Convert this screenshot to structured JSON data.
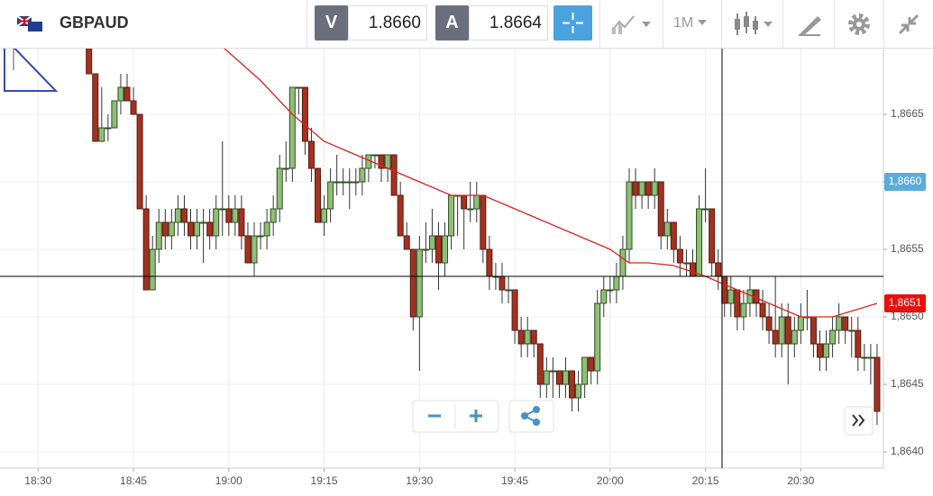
{
  "toolbar": {
    "symbol": "GBPAUD",
    "bid_label": "V",
    "bid": "1.8660",
    "ask_label": "A",
    "ask": "1.8664",
    "timeframe": "1M"
  },
  "chart_data": {
    "type": "candlestick",
    "x": [
      "18:38",
      "18:39",
      "18:40",
      "18:41",
      "18:42",
      "18:43",
      "18:44",
      "18:45",
      "18:46",
      "18:47",
      "18:48",
      "18:49",
      "18:50",
      "18:51",
      "18:52",
      "18:53",
      "18:54",
      "18:55",
      "18:56",
      "18:57",
      "18:58",
      "18:59",
      "19:00",
      "19:01",
      "19:02",
      "19:03",
      "19:04",
      "19:05",
      "19:06",
      "19:07",
      "19:08",
      "19:09",
      "19:10",
      "19:11",
      "19:12",
      "19:13",
      "19:14",
      "19:15",
      "19:16",
      "19:17",
      "19:18",
      "19:19",
      "19:20",
      "19:21",
      "19:22",
      "19:23",
      "19:24",
      "19:25",
      "19:26",
      "19:27",
      "19:28",
      "19:29",
      "19:30",
      "19:31",
      "19:32",
      "19:33",
      "19:34",
      "19:35",
      "19:36",
      "19:37",
      "19:38",
      "19:39",
      "19:40",
      "19:41",
      "19:42",
      "19:43",
      "19:44",
      "19:45",
      "19:46",
      "19:47",
      "19:48",
      "19:49",
      "19:50",
      "19:51",
      "19:52",
      "19:53",
      "19:54",
      "19:55",
      "19:56",
      "19:57",
      "19:58",
      "19:59",
      "20:00",
      "20:01",
      "20:02",
      "20:03",
      "20:04",
      "20:05",
      "20:06",
      "20:07",
      "20:08",
      "20:09",
      "20:10",
      "20:11",
      "20:12",
      "20:13",
      "20:14",
      "20:15",
      "20:16",
      "20:17",
      "20:18",
      "20:19",
      "20:20",
      "20:21",
      "20:22",
      "20:23",
      "20:24",
      "20:25",
      "20:26",
      "20:27",
      "20:28",
      "20:29",
      "20:30",
      "20:31",
      "20:32",
      "20:33",
      "20:34",
      "20:35",
      "20:36",
      "20:37",
      "20:38",
      "20:39",
      "20:40",
      "20:41",
      "20:42"
    ],
    "ohlc": [
      [
        1.867,
        1.8671,
        1.8668,
        1.8668
      ],
      [
        1.8668,
        1.8668,
        1.8663,
        1.8663
      ],
      [
        1.8663,
        1.8667,
        1.8663,
        1.8664
      ],
      [
        1.8664,
        1.8665,
        1.8663,
        1.8664
      ],
      [
        1.8664,
        1.8666,
        1.8664,
        1.8666
      ],
      [
        1.8666,
        1.8668,
        1.8665,
        1.8667
      ],
      [
        1.8667,
        1.8668,
        1.8666,
        1.8666
      ],
      [
        1.8666,
        1.8667,
        1.8665,
        1.8665
      ],
      [
        1.8665,
        1.8665,
        1.8658,
        1.8658
      ],
      [
        1.8658,
        1.8659,
        1.8652,
        1.8652
      ],
      [
        1.8652,
        1.8656,
        1.8652,
        1.8655
      ],
      [
        1.8655,
        1.8658,
        1.8654,
        1.8657
      ],
      [
        1.8657,
        1.8658,
        1.8655,
        1.8656
      ],
      [
        1.8656,
        1.8658,
        1.8655,
        1.8657
      ],
      [
        1.8657,
        1.8659,
        1.8656,
        1.8658
      ],
      [
        1.8658,
        1.8659,
        1.8656,
        1.8657
      ],
      [
        1.8657,
        1.8658,
        1.8655,
        1.8656
      ],
      [
        1.8656,
        1.8658,
        1.8655,
        1.8657
      ],
      [
        1.8657,
        1.8658,
        1.8654,
        1.8657
      ],
      [
        1.8657,
        1.8658,
        1.8655,
        1.8656
      ],
      [
        1.8656,
        1.8659,
        1.8655,
        1.8658
      ],
      [
        1.8658,
        1.8663,
        1.8656,
        1.8658
      ],
      [
        1.8658,
        1.8659,
        1.8656,
        1.8657
      ],
      [
        1.8657,
        1.8659,
        1.8656,
        1.8658
      ],
      [
        1.8658,
        1.8659,
        1.8655,
        1.8656
      ],
      [
        1.8656,
        1.8657,
        1.8654,
        1.8654
      ],
      [
        1.8654,
        1.8657,
        1.8653,
        1.8656
      ],
      [
        1.8656,
        1.8657,
        1.8655,
        1.8656
      ],
      [
        1.8656,
        1.8658,
        1.8655,
        1.8657
      ],
      [
        1.8657,
        1.8659,
        1.8656,
        1.8658
      ],
      [
        1.8658,
        1.8662,
        1.8657,
        1.8661
      ],
      [
        1.8661,
        1.8663,
        1.866,
        1.8661
      ],
      [
        1.8661,
        1.8667,
        1.866,
        1.8667
      ],
      [
        1.8667,
        1.8667,
        1.8665,
        1.8667
      ],
      [
        1.8667,
        1.8667,
        1.8662,
        1.8663
      ],
      [
        1.8663,
        1.8664,
        1.866,
        1.8661
      ],
      [
        1.8661,
        1.8661,
        1.8657,
        1.8657
      ],
      [
        1.8657,
        1.8659,
        1.8656,
        1.8658
      ],
      [
        1.8658,
        1.8661,
        1.8657,
        1.866
      ],
      [
        1.866,
        1.8662,
        1.8659,
        1.866
      ],
      [
        1.866,
        1.8661,
        1.8659,
        1.866
      ],
      [
        1.866,
        1.8661,
        1.8658,
        1.866
      ],
      [
        1.866,
        1.8661,
        1.8659,
        1.866
      ],
      [
        1.866,
        1.8662,
        1.8659,
        1.8661
      ],
      [
        1.8661,
        1.8662,
        1.866,
        1.8662
      ],
      [
        1.8662,
        1.8662,
        1.8661,
        1.8662
      ],
      [
        1.8662,
        1.8662,
        1.866,
        1.8661
      ],
      [
        1.8661,
        1.8662,
        1.866,
        1.8662
      ],
      [
        1.8662,
        1.8662,
        1.8659,
        1.8659
      ],
      [
        1.8659,
        1.866,
        1.8656,
        1.8656
      ],
      [
        1.8656,
        1.8657,
        1.8655,
        1.8655
      ],
      [
        1.8655,
        1.8655,
        1.8649,
        1.865
      ],
      [
        1.865,
        1.8656,
        1.8646,
        1.8655
      ],
      [
        1.8655,
        1.8657,
        1.8654,
        1.8655
      ],
      [
        1.8655,
        1.8658,
        1.8654,
        1.8656
      ],
      [
        1.8656,
        1.8657,
        1.8652,
        1.8654
      ],
      [
        1.8654,
        1.8657,
        1.8653,
        1.8656
      ],
      [
        1.8656,
        1.8659,
        1.8655,
        1.8659
      ],
      [
        1.8659,
        1.8659,
        1.8656,
        1.8659
      ],
      [
        1.8659,
        1.8659,
        1.8655,
        1.8658
      ],
      [
        1.8658,
        1.866,
        1.8657,
        1.8658
      ],
      [
        1.8658,
        1.866,
        1.8657,
        1.8659
      ],
      [
        1.8659,
        1.8659,
        1.8654,
        1.8655
      ],
      [
        1.8655,
        1.8656,
        1.8652,
        1.8653
      ],
      [
        1.8653,
        1.8654,
        1.8652,
        1.8653
      ],
      [
        1.8653,
        1.8654,
        1.8651,
        1.8652
      ],
      [
        1.8652,
        1.8653,
        1.8651,
        1.8652
      ],
      [
        1.8652,
        1.8652,
        1.8648,
        1.8649
      ],
      [
        1.8649,
        1.865,
        1.8647,
        1.8648
      ],
      [
        1.8648,
        1.865,
        1.8647,
        1.8649
      ],
      [
        1.8649,
        1.8649,
        1.8647,
        1.8648
      ],
      [
        1.8648,
        1.8648,
        1.8644,
        1.8645
      ],
      [
        1.8645,
        1.8647,
        1.8644,
        1.8646
      ],
      [
        1.8646,
        1.8647,
        1.8644,
        1.8646
      ],
      [
        1.8646,
        1.8646,
        1.8644,
        1.8645
      ],
      [
        1.8645,
        1.8647,
        1.8644,
        1.8646
      ],
      [
        1.8646,
        1.8646,
        1.8643,
        1.8644
      ],
      [
        1.8644,
        1.8646,
        1.8643,
        1.8645
      ],
      [
        1.8645,
        1.8647,
        1.8644,
        1.8647
      ],
      [
        1.8647,
        1.8647,
        1.8645,
        1.8646
      ],
      [
        1.8646,
        1.8652,
        1.8645,
        1.8651
      ],
      [
        1.8651,
        1.8653,
        1.865,
        1.8652
      ],
      [
        1.8652,
        1.8653,
        1.8651,
        1.8652
      ],
      [
        1.8652,
        1.8654,
        1.8651,
        1.8653
      ],
      [
        1.8653,
        1.8656,
        1.8652,
        1.8655
      ],
      [
        1.8655,
        1.8661,
        1.8654,
        1.866
      ],
      [
        1.866,
        1.8661,
        1.8658,
        1.8659
      ],
      [
        1.8659,
        1.866,
        1.8658,
        1.866
      ],
      [
        1.866,
        1.866,
        1.8658,
        1.8659
      ],
      [
        1.8659,
        1.8661,
        1.8658,
        1.866
      ],
      [
        1.866,
        1.866,
        1.8655,
        1.8656
      ],
      [
        1.8656,
        1.8658,
        1.8655,
        1.8657
      ],
      [
        1.8657,
        1.8657,
        1.8654,
        1.8655
      ],
      [
        1.8655,
        1.8656,
        1.8653,
        1.8654
      ],
      [
        1.8654,
        1.8655,
        1.8653,
        1.8654
      ],
      [
        1.8654,
        1.8655,
        1.8653,
        1.8653
      ],
      [
        1.8653,
        1.8659,
        1.8653,
        1.8658
      ],
      [
        1.8658,
        1.8661,
        1.8657,
        1.8658
      ],
      [
        1.8658,
        1.8658,
        1.8653,
        1.8654
      ],
      [
        1.8654,
        1.8655,
        1.8652,
        1.8653
      ],
      [
        1.8653,
        1.8653,
        1.865,
        1.8651
      ],
      [
        1.8651,
        1.8653,
        1.865,
        1.8652
      ],
      [
        1.8652,
        1.8652,
        1.8649,
        1.865
      ],
      [
        1.865,
        1.8652,
        1.8649,
        1.8651
      ],
      [
        1.8651,
        1.8653,
        1.865,
        1.8652
      ],
      [
        1.8652,
        1.8652,
        1.865,
        1.8651
      ],
      [
        1.8651,
        1.8652,
        1.8649,
        1.865
      ],
      [
        1.865,
        1.8651,
        1.8648,
        1.8649
      ],
      [
        1.8649,
        1.8653,
        1.8647,
        1.8648
      ],
      [
        1.8648,
        1.8651,
        1.8647,
        1.865
      ],
      [
        1.865,
        1.8651,
        1.8645,
        1.8648
      ],
      [
        1.8648,
        1.865,
        1.8647,
        1.8649
      ],
      [
        1.8649,
        1.8651,
        1.8648,
        1.865
      ],
      [
        1.865,
        1.8652,
        1.8649,
        1.865
      ],
      [
        1.865,
        1.865,
        1.8647,
        1.8648
      ],
      [
        1.8648,
        1.8649,
        1.8646,
        1.8647
      ],
      [
        1.8647,
        1.8649,
        1.8646,
        1.8648
      ],
      [
        1.8648,
        1.865,
        1.8647,
        1.8649
      ],
      [
        1.8649,
        1.8651,
        1.8648,
        1.865
      ],
      [
        1.865,
        1.865,
        1.8648,
        1.8649
      ],
      [
        1.8649,
        1.865,
        1.8647,
        1.8649
      ],
      [
        1.8649,
        1.865,
        1.8646,
        1.8647
      ],
      [
        1.8647,
        1.8648,
        1.8646,
        1.8647
      ],
      [
        1.8647,
        1.8648,
        1.8645,
        1.8647
      ],
      [
        1.8647,
        1.8648,
        1.8642,
        1.8643
      ]
    ],
    "up_color": "#8fbf77",
    "down_color": "#a33220",
    "moving_average": {
      "color": "#e02020",
      "x": [
        "18:59",
        "19:05",
        "19:10",
        "19:15",
        "19:20",
        "19:25",
        "19:30",
        "19:35",
        "19:40",
        "19:45",
        "19:50",
        "19:55",
        "20:00",
        "20:03",
        "20:06",
        "20:10",
        "20:15",
        "20:20",
        "20:25",
        "20:30",
        "20:35",
        "20:42"
      ],
      "values": [
        1.867,
        1.86675,
        1.8665,
        1.8663,
        1.8662,
        1.8661,
        1.866,
        1.8659,
        1.8659,
        1.8658,
        1.8657,
        1.8656,
        1.8655,
        1.8654,
        1.8654,
        1.86538,
        1.8653,
        1.8652,
        1.8651,
        1.865,
        1.865,
        1.8651
      ]
    },
    "xlim": [
      "18:24",
      "20:43"
    ],
    "xticks": [
      "18:30",
      "18:45",
      "19:00",
      "19:15",
      "19:30",
      "19:45",
      "20:00",
      "20:15",
      "20:30"
    ],
    "ylim": [
      1.86388,
      1.86698
    ],
    "yticks": [
      {
        "value": 1.864,
        "label": "1,8640"
      },
      {
        "value": 1.8645,
        "label": "1,8645"
      },
      {
        "value": 1.865,
        "label": "1,8650"
      },
      {
        "value": 1.8655,
        "label": "1,8655"
      },
      {
        "value": 1.866,
        "label": "1,8660"
      },
      {
        "value": 1.8665,
        "label": "1,8665"
      }
    ],
    "price_markers": [
      {
        "value": 1.866,
        "label": "1,8660",
        "color": "#5aacdc"
      },
      {
        "value": 1.8651,
        "label": "1,8651",
        "color": "#e8100c"
      }
    ],
    "grid": true
  }
}
